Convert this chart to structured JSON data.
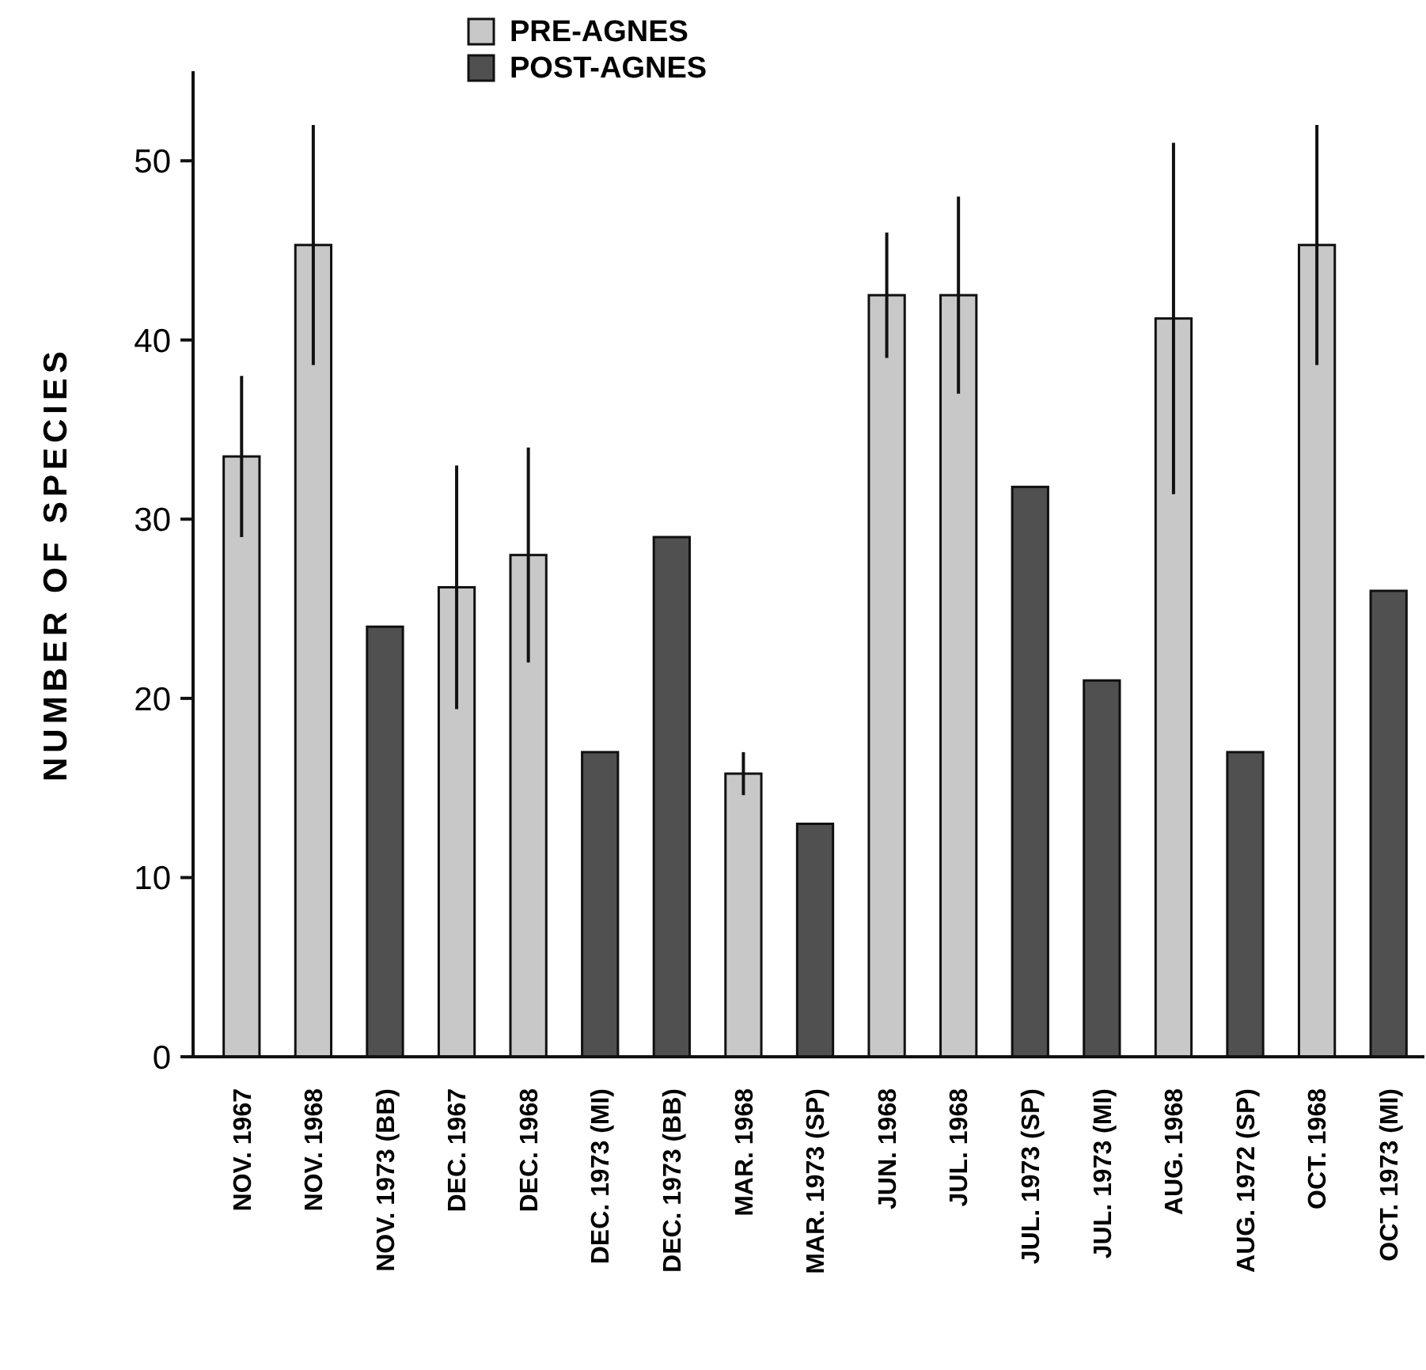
{
  "chart_data": {
    "type": "bar",
    "ylabel": "NUMBER OF SPECIES",
    "categories": [
      "NOV. 1967",
      "NOV. 1968",
      "NOV. 1973 (BB)",
      "DEC. 1967",
      "DEC. 1968",
      "DEC. 1973 (MI)",
      "DEC. 1973 (BB)",
      "MAR. 1968",
      "MAR. 1973 (SP)",
      "JUN. 1968",
      "JUL. 1968",
      "JUL. 1973 (SP)",
      "JUL. 1973 (MI)",
      "AUG. 1968",
      "AUG. 1972 (SP)",
      "OCT. 1968",
      "OCT. 1973 (MI)"
    ],
    "series": [
      {
        "name": "PRE-AGNES",
        "color": "#c8c8c8",
        "values": [
          33.5,
          45.3,
          null,
          26.2,
          28,
          null,
          null,
          15.8,
          null,
          42.5,
          42.5,
          null,
          null,
          41.2,
          null,
          45.3,
          null
        ],
        "errors": [
          4.5,
          6.7,
          null,
          6.8,
          6,
          null,
          null,
          1.2,
          null,
          3.5,
          5.5,
          null,
          null,
          9.8,
          null,
          6.7,
          null
        ]
      },
      {
        "name": "POST-AGNES",
        "color": "#505050",
        "values": [
          null,
          null,
          24,
          null,
          null,
          17,
          29,
          null,
          13,
          null,
          null,
          31.8,
          21,
          null,
          17,
          null,
          26
        ]
      }
    ],
    "ylim": [
      0,
      55
    ],
    "yticks": [
      0,
      10,
      20,
      30,
      40,
      50
    ],
    "grid": false,
    "legend": "top"
  }
}
